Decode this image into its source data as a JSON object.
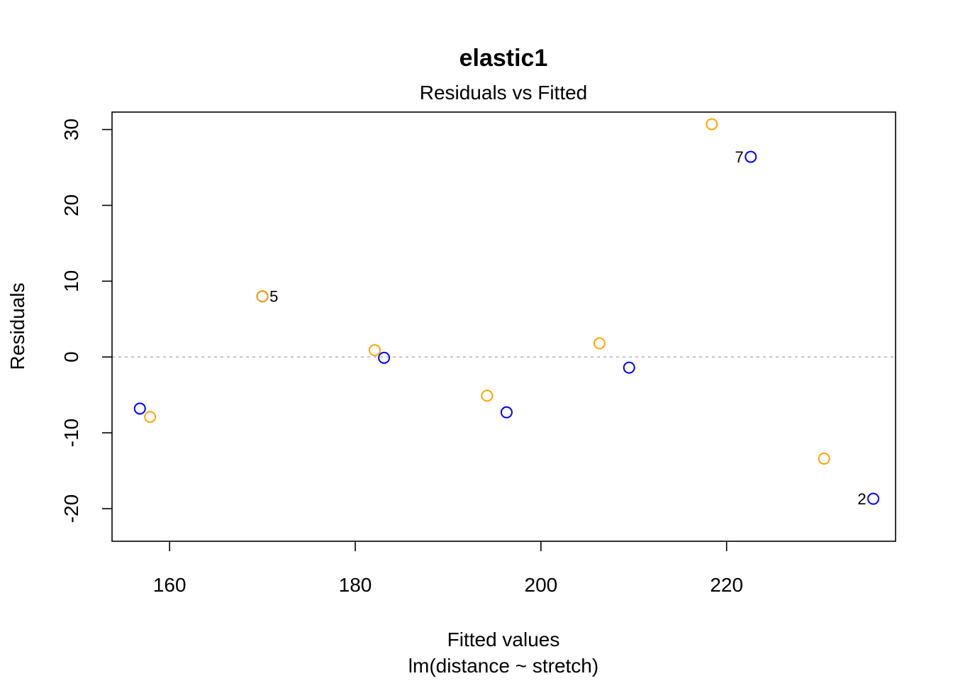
{
  "chart_data": {
    "type": "scatter",
    "title": "elastic1",
    "subtitle": "Residuals vs Fitted",
    "xlabel": "Fitted values",
    "xlabel_sub": "lm(distance ~ stretch)",
    "ylabel": "Residuals",
    "xlim": [
      153.8,
      238.2
    ],
    "ylim": [
      -24.3,
      32.3
    ],
    "x_ticks": [
      160,
      180,
      200,
      220
    ],
    "y_ticks": [
      -20,
      -10,
      0,
      10,
      20,
      30
    ],
    "reference_line": 0,
    "grid": false,
    "series": [
      {
        "color": "#0000ff",
        "points": [
          {
            "x": 156.8,
            "y": -6.8
          },
          {
            "x": 170.0,
            "y": 8.0
          },
          {
            "x": 183.1,
            "y": -0.1
          },
          {
            "x": 196.3,
            "y": -7.3
          },
          {
            "x": 209.5,
            "y": -1.4
          },
          {
            "x": 222.6,
            "y": 26.4
          },
          {
            "x": 235.8,
            "y": -18.7
          }
        ]
      },
      {
        "color": "#ffa500",
        "points": [
          {
            "x": 157.9,
            "y": -7.9
          },
          {
            "x": 170.0,
            "y": 8.0
          },
          {
            "x": 182.1,
            "y": 0.9
          },
          {
            "x": 194.2,
            "y": -5.1
          },
          {
            "x": 206.3,
            "y": 1.8
          },
          {
            "x": 218.4,
            "y": 30.7
          },
          {
            "x": 230.5,
            "y": -13.4
          }
        ]
      }
    ],
    "annotations": [
      {
        "text": "5",
        "x": 170.0,
        "y": 8.0,
        "side": "right"
      },
      {
        "text": "7",
        "x": 222.6,
        "y": 26.4,
        "side": "left"
      },
      {
        "text": "2",
        "x": 235.8,
        "y": -18.7,
        "side": "left"
      }
    ]
  }
}
